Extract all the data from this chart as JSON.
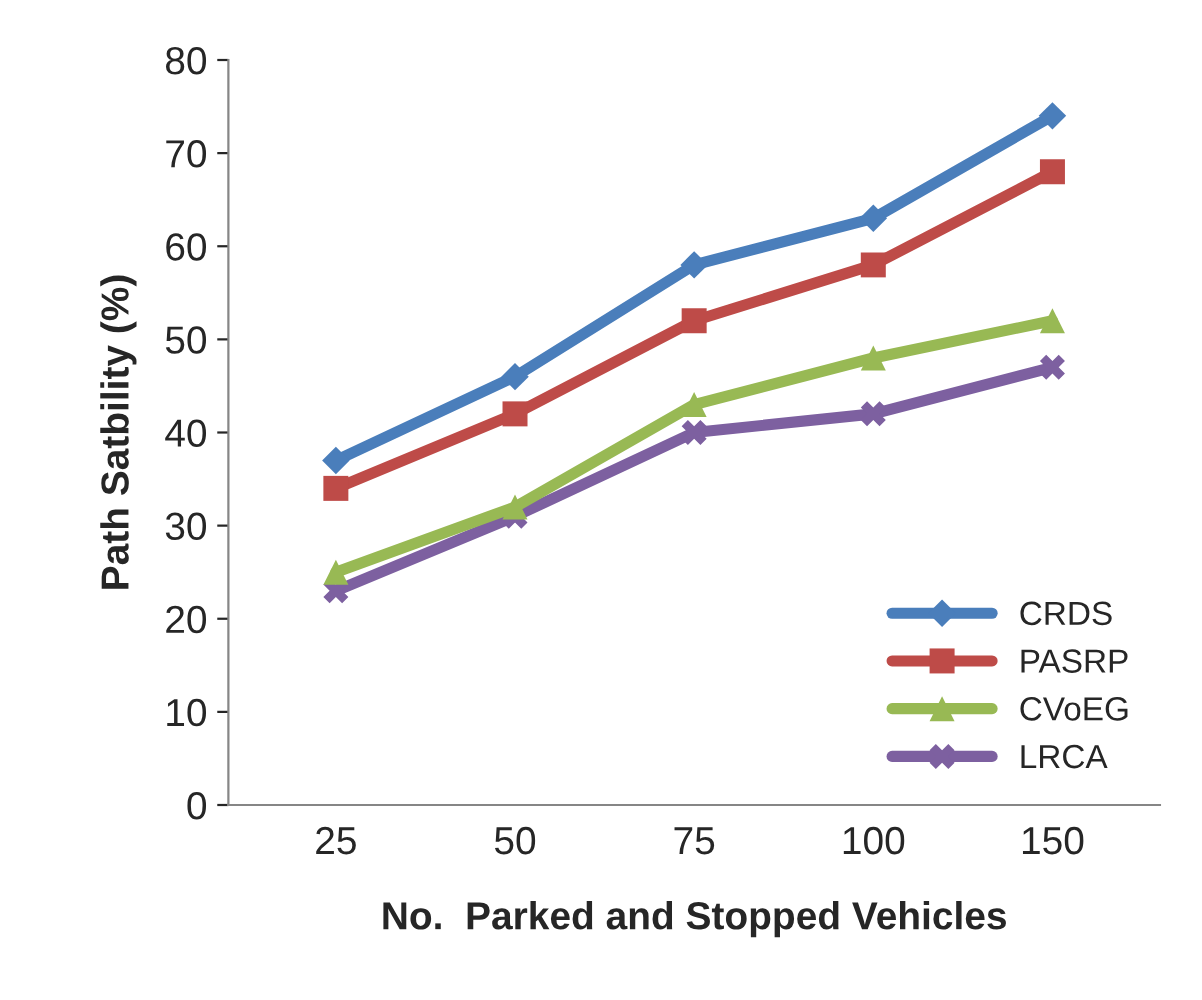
{
  "chart_data": {
    "type": "line",
    "xlabel": "No.  Parked and Stopped Vehicles",
    "ylabel": "Path Satbility (%)",
    "categories": [
      "25",
      "50",
      "75",
      "100",
      "150"
    ],
    "series": [
      {
        "name": "CRDS",
        "color": "#4a7ebb",
        "marker": "diamond",
        "values": [
          37,
          46,
          58,
          63,
          74
        ]
      },
      {
        "name": "PASRP",
        "color": "#be4b48",
        "marker": "square",
        "values": [
          34,
          42,
          52,
          58,
          68
        ]
      },
      {
        "name": "CVoEG",
        "color": "#98b954",
        "marker": "triangle",
        "values": [
          25,
          32,
          43,
          48,
          52
        ]
      },
      {
        "name": "LRCA",
        "color": "#7d60a0",
        "marker": "cross",
        "values": [
          23,
          31,
          40,
          42,
          47
        ]
      }
    ],
    "ylim": [
      0,
      80
    ],
    "yticks": [
      0,
      10,
      20,
      30,
      40,
      50,
      60,
      70,
      80
    ],
    "grid": false,
    "legend": "bottom right",
    "line_style": "solid"
  }
}
